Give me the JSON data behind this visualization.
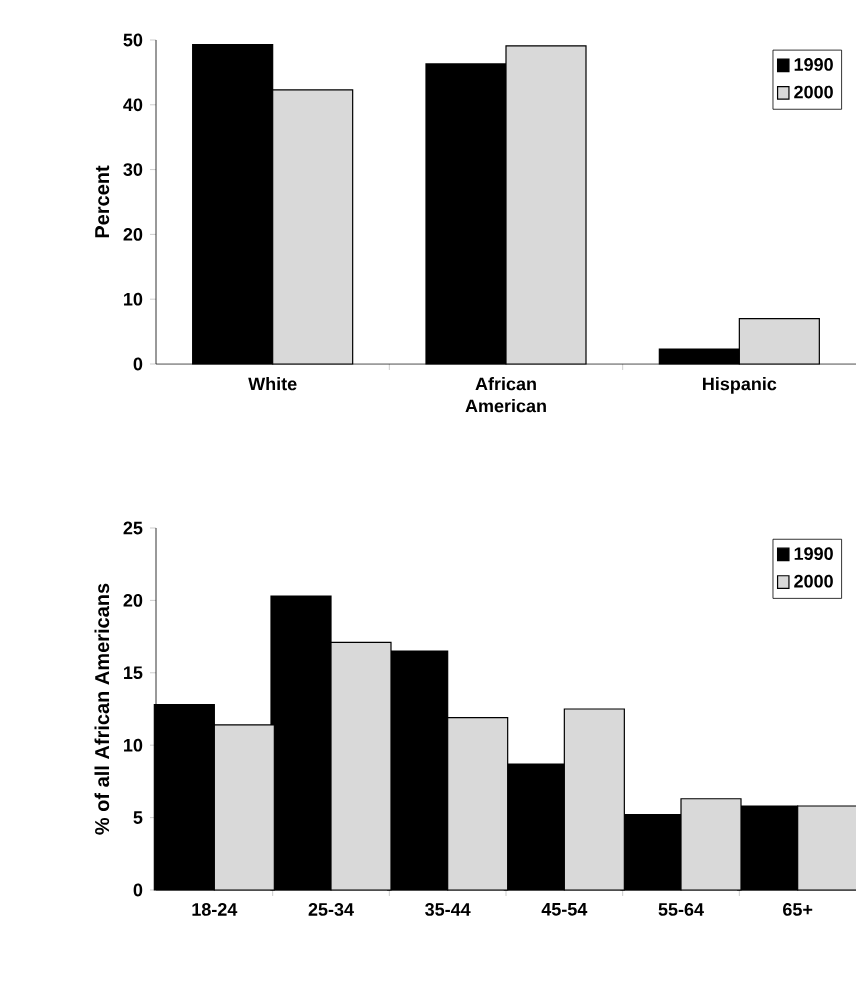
{
  "chart_data": [
    {
      "type": "bar",
      "ylabel": "Percent",
      "categories": [
        "White",
        "African American",
        "Hispanic"
      ],
      "series": [
        {
          "name": "1990",
          "color": "#000000",
          "values": [
            49.3,
            46.3,
            2.3
          ]
        },
        {
          "name": "2000",
          "color": "#d9d9d9",
          "values": [
            42.3,
            49.1,
            7.0
          ]
        }
      ],
      "ylim": [
        0,
        50
      ],
      "yticks": [
        0,
        10,
        20,
        30,
        40,
        50
      ],
      "legend": "top right",
      "grid": false
    },
    {
      "type": "bar",
      "ylabel": "% of all African Americans",
      "categories": [
        "18-24",
        "25-34",
        "35-44",
        "45-54",
        "55-64",
        "65+"
      ],
      "series": [
        {
          "name": "1990",
          "color": "#000000",
          "values": [
            12.8,
            20.3,
            16.5,
            8.7,
            5.2,
            5.8
          ]
        },
        {
          "name": "2000",
          "color": "#d9d9d9",
          "values": [
            11.4,
            17.1,
            11.9,
            12.5,
            6.3,
            5.8
          ]
        }
      ],
      "ylim": [
        0,
        25
      ],
      "yticks": [
        0,
        5,
        10,
        15,
        20,
        25
      ],
      "legend": "top right",
      "grid": false
    }
  ]
}
